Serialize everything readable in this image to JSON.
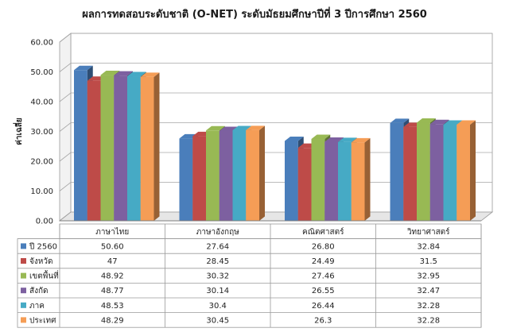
{
  "chart_data": {
    "type": "bar",
    "title": "ผลการทดสอบระดับชาติ (O-NET) ระดับมัธยมศึกษาปีที่ 3 ปีการศึกษา 2560",
    "xlabel": "",
    "ylabel": "ค่าเฉลี่ย",
    "ylim": [
      0,
      60
    ],
    "yticks": [
      "0.00",
      "10.00",
      "20.00",
      "30.00",
      "40.00",
      "50.00",
      "60.00"
    ],
    "grid": true,
    "legend": "table-below",
    "categories": [
      "ภาษาไทย",
      "ภาษาอังกฤษ",
      "คณิตศาสตร์",
      "วิทยาศาสตร์"
    ],
    "series": [
      {
        "name": "ปี 2560",
        "color": "#4a7ebb",
        "labels": [
          "50.60",
          "27.64",
          "26.80",
          "32.84"
        ],
        "values": [
          50.6,
          27.64,
          26.8,
          32.84
        ]
      },
      {
        "name": "จังหวัด",
        "color": "#be4b48",
        "labels": [
          "47",
          "28.45",
          "24.49",
          "31.5"
        ],
        "values": [
          47,
          28.45,
          24.49,
          31.5
        ]
      },
      {
        "name": "เขตพื้นที่",
        "color": "#98b954",
        "labels": [
          "48.92",
          "30.32",
          "27.46",
          "32.95"
        ],
        "values": [
          48.92,
          30.32,
          27.46,
          32.95
        ]
      },
      {
        "name": "สังกัด",
        "color": "#7d60a0",
        "labels": [
          "48.77",
          "30.14",
          "26.55",
          "32.47"
        ],
        "values": [
          48.77,
          30.14,
          26.55,
          32.47
        ]
      },
      {
        "name": "ภาค",
        "color": "#46aac5",
        "labels": [
          "48.53",
          "30.4",
          "26.44",
          "32.28"
        ],
        "values": [
          48.53,
          30.4,
          26.44,
          32.28
        ]
      },
      {
        "name": "ประเทศ",
        "color": "#f59d56",
        "labels": [
          "48.29",
          "30.45",
          "26.3",
          "32.28"
        ],
        "values": [
          48.29,
          30.45,
          26.3,
          32.28
        ]
      }
    ]
  }
}
